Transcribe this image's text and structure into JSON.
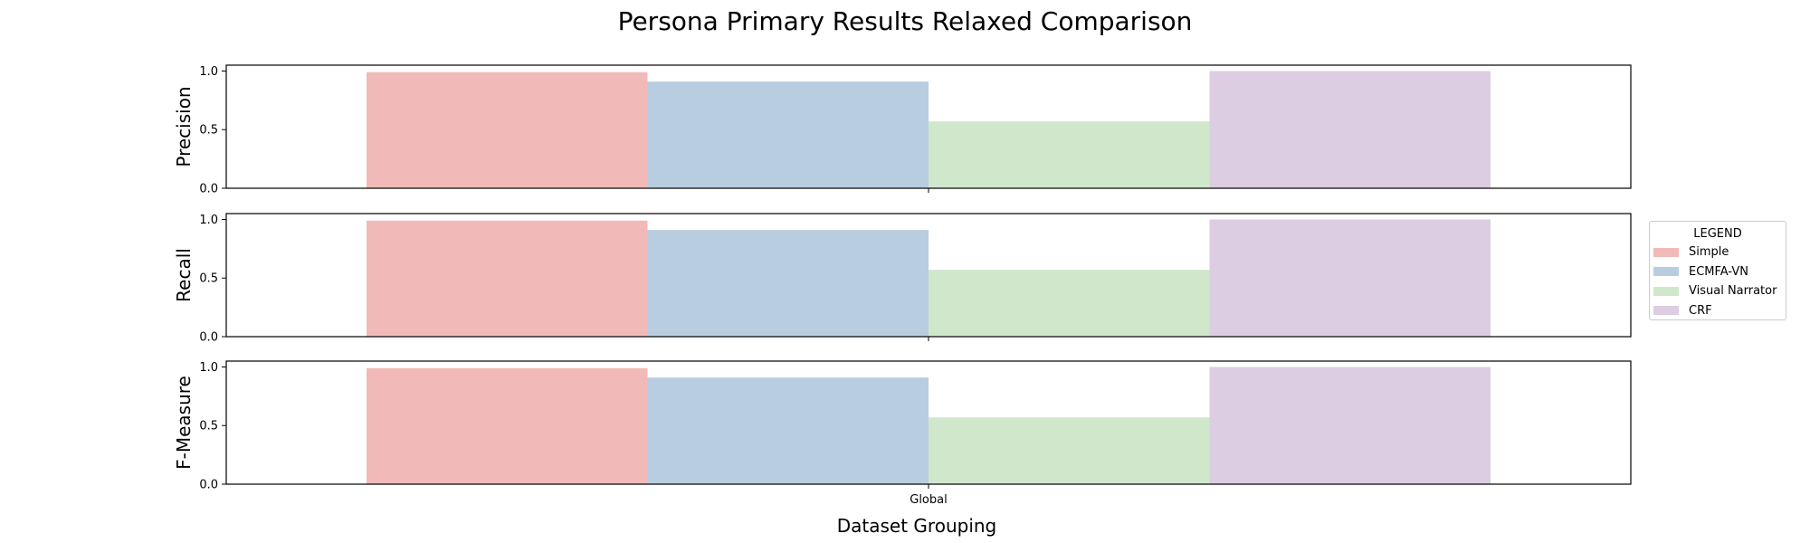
{
  "chart_data": {
    "type": "bar",
    "title": "Persona Primary Results Relaxed Comparison",
    "xlabel": "Dataset Grouping",
    "categories": [
      "Global"
    ],
    "yticks": [
      "0.0",
      "0.5",
      "1.0"
    ],
    "ylim": [
      0,
      1.05
    ],
    "grid": false,
    "legend": {
      "title": "LEGEND",
      "placement": "right",
      "items": [
        "Simple",
        "ECMFA-VN",
        "Visual Narrator",
        "CRF"
      ]
    },
    "colors": [
      "#f1bab8",
      "#b8cde0",
      "#d0e7cb",
      "#dccde3"
    ],
    "panels": [
      {
        "ylabel": "Precision",
        "series": [
          {
            "name": "Simple",
            "values": [
              0.99
            ]
          },
          {
            "name": "ECMFA-VN",
            "values": [
              0.91
            ]
          },
          {
            "name": "Visual Narrator",
            "values": [
              0.57
            ]
          },
          {
            "name": "CRF",
            "values": [
              1.0
            ]
          }
        ]
      },
      {
        "ylabel": "Recall",
        "series": [
          {
            "name": "Simple",
            "values": [
              0.99
            ]
          },
          {
            "name": "ECMFA-VN",
            "values": [
              0.91
            ]
          },
          {
            "name": "Visual Narrator",
            "values": [
              0.57
            ]
          },
          {
            "name": "CRF",
            "values": [
              1.0
            ]
          }
        ]
      },
      {
        "ylabel": "F-Measure",
        "series": [
          {
            "name": "Simple",
            "values": [
              0.99
            ]
          },
          {
            "name": "ECMFA-VN",
            "values": [
              0.91
            ]
          },
          {
            "name": "Visual Narrator",
            "values": [
              0.57
            ]
          },
          {
            "name": "CRF",
            "values": [
              1.0
            ]
          }
        ]
      }
    ]
  }
}
